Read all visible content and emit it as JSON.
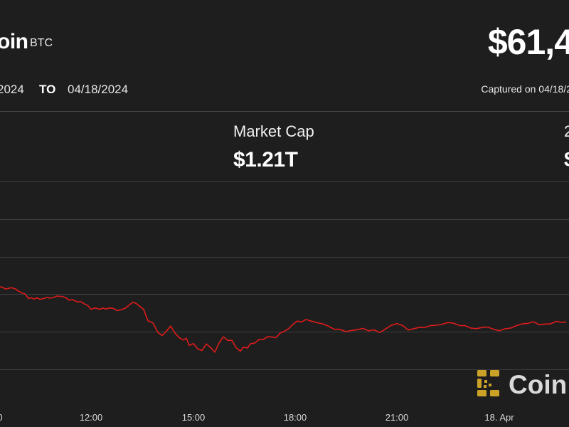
{
  "header": {
    "asset_name": "oin",
    "ticker": "BTC",
    "price": "$61,4",
    "date_from": "2024",
    "date_to_label": "TO",
    "date_to": "04/18/2024",
    "captured": "Captured on 04/18/2"
  },
  "stats": {
    "market_cap_label": "Market Cap",
    "market_cap_value": "$1.21T",
    "right_stat_label": "2",
    "right_stat_value": "$"
  },
  "watermark": {
    "text": "Coin",
    "brand_color": "#c9a227"
  },
  "colors": {
    "background": "#1e1e1e",
    "line": "#e01b1b",
    "grid": "#3f3f3f"
  },
  "chart_data": {
    "type": "line",
    "title": "",
    "xlabel": "",
    "ylabel": "",
    "x_ticks": [
      "0",
      "12:00",
      "15:00",
      "18:00",
      "21:00",
      "18. Apr"
    ],
    "x_unit": "hours since the 0 tick (the 0 tick is 3 hours before 12:00)",
    "ylim": [
      0,
      1
    ],
    "grid": true,
    "legend": "none",
    "series": [
      {
        "name": "",
        "x": [
          0,
          0.3,
          0.8,
          1.6,
          2.2,
          2.5,
          3.0,
          3.5,
          4.0,
          4.4,
          4.8,
          5.2,
          5.6,
          6.2,
          6.6,
          7.0,
          7.5,
          8.0,
          8.7,
          9.2,
          9.7,
          10.2,
          10.8,
          11.4,
          11.9,
          12.4,
          12.8,
          13.4,
          14.0,
          14.4,
          14.9,
          15.4,
          15.9,
          16.5,
          17.0,
          17.6,
          18.0,
          18.7,
          19.2,
          19.8,
          20.2,
          20.8,
          21.5,
          22.2,
          22.8,
          23.4,
          24.0,
          24.6,
          25.2,
          25.8,
          26.2,
          26.6,
          27.2,
          27.8,
          28.4,
          29.0,
          29.6,
          30.2,
          30.8,
          31.4,
          32.0,
          32.6,
          33.2,
          33.8,
          34.2,
          34.8,
          35.2,
          35.8,
          36.4,
          37.0,
          37.6,
          38.2,
          38.8,
          39.4,
          40.0,
          40.6,
          41.2,
          41.8,
          42.4,
          43.0,
          43.8,
          44.6,
          45.4,
          46.2,
          47.0,
          47.8,
          48.6,
          49.4,
          50.2,
          51.0,
          51.8,
          52.6,
          53.4,
          54.2,
          55.0,
          55.8,
          56.6,
          57.4,
          58.2,
          59.0,
          59.8,
          60.6,
          61.4,
          62.2,
          63.0,
          63.8,
          64.6,
          65.4,
          66.2,
          67.0,
          67.8,
          68.6,
          69.4,
          70.2,
          71.0,
          71.8,
          72.6,
          73.4,
          74.2,
          75.0,
          75.8,
          76.6,
          77.4,
          78.2,
          79.0,
          79.6
        ],
        "y": [
          0.55,
          0.547,
          0.535,
          0.544,
          0.535,
          0.523,
          0.51,
          0.503,
          0.472,
          0.477,
          0.468,
          0.477,
          0.467,
          0.472,
          0.479,
          0.474,
          0.478,
          0.488,
          0.486,
          0.478,
          0.461,
          0.465,
          0.45,
          0.45,
          0.435,
          0.423,
          0.4,
          0.409,
          0.4,
          0.408,
          0.402,
          0.409,
          0.406,
          0.391,
          0.397,
          0.407,
          0.422,
          0.448,
          0.437,
          0.414,
          0.399,
          0.324,
          0.309,
          0.246,
          0.225,
          0.255,
          0.288,
          0.242,
          0.211,
          0.195,
          0.208,
          0.159,
          0.172,
          0.136,
          0.125,
          0.169,
          0.146,
          0.114,
          0.176,
          0.217,
          0.193,
          0.193,
          0.144,
          0.121,
          0.148,
          0.142,
          0.17,
          0.175,
          0.198,
          0.198,
          0.217,
          0.216,
          0.211,
          0.242,
          0.254,
          0.272,
          0.3,
          0.322,
          0.315,
          0.332,
          0.321,
          0.311,
          0.303,
          0.287,
          0.267,
          0.267,
          0.251,
          0.259,
          0.264,
          0.273,
          0.257,
          0.263,
          0.245,
          0.269,
          0.293,
          0.305,
          0.292,
          0.262,
          0.271,
          0.28,
          0.28,
          0.292,
          0.294,
          0.301,
          0.312,
          0.307,
          0.292,
          0.291,
          0.275,
          0.271,
          0.279,
          0.282,
          0.267,
          0.257,
          0.27,
          0.275,
          0.291,
          0.303,
          0.306,
          0.317,
          0.297,
          0.302,
          0.303,
          0.32,
          0.313,
          0.316
        ]
      }
    ]
  }
}
